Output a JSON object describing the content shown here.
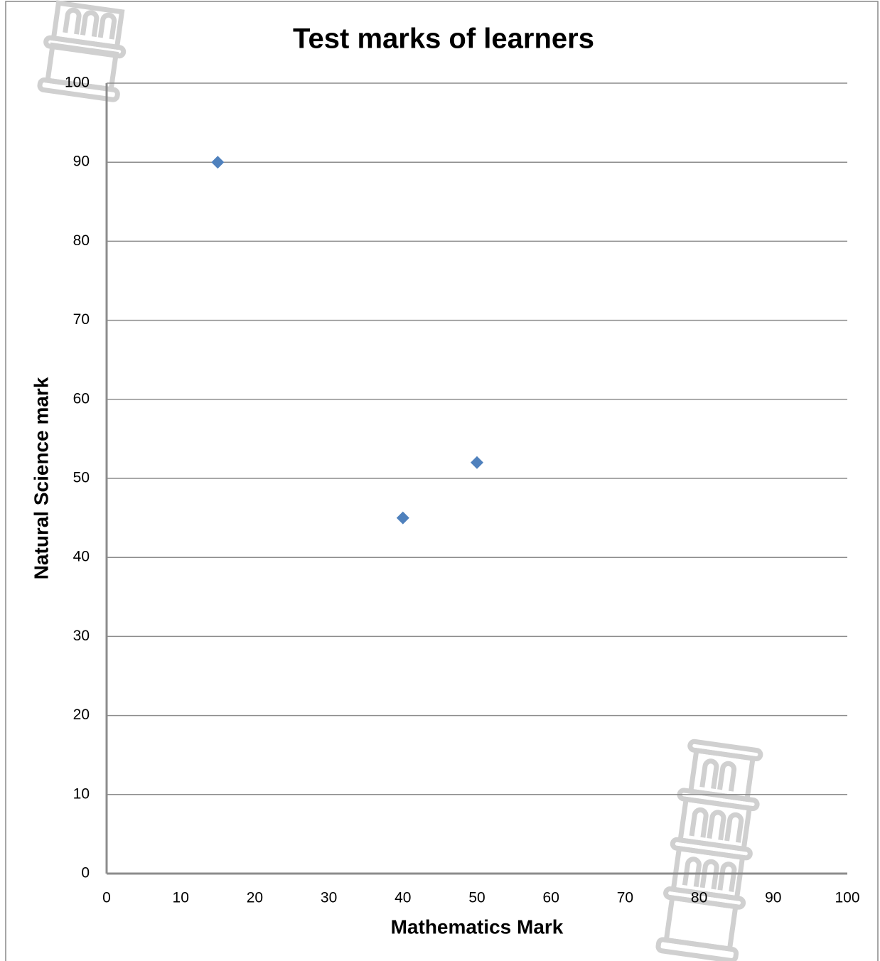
{
  "chart_data": {
    "type": "scatter",
    "title": "Test marks of learners",
    "x_label": "Mathematics Mark",
    "y_label": "Natural Science mark",
    "x": [
      15,
      40,
      50
    ],
    "values": [
      90,
      45,
      52
    ],
    "color": "#4f81bd",
    "xlim": [
      0,
      100
    ],
    "xticks": [
      0,
      10,
      20,
      30,
      40,
      50,
      60,
      70,
      80,
      90,
      100
    ],
    "ylim": [
      0,
      100
    ],
    "yticks": [
      0,
      10,
      20,
      30,
      40,
      50,
      60,
      70,
      80,
      90,
      100
    ],
    "grid": true
  }
}
